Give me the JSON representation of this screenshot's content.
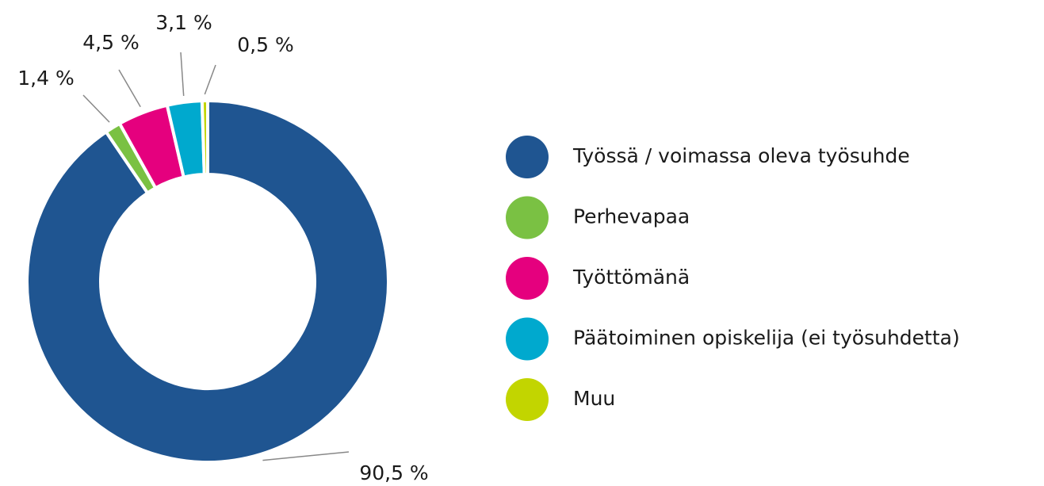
{
  "chart_data": {
    "type": "pie",
    "categories": [
      "Työssä / voimassa oleva työsuhde",
      "Perhevapaa",
      "Työttömänä",
      "Päätoiminen opiskelija (ei työsuhdetta)",
      "Muu"
    ],
    "values": [
      90.5,
      1.4,
      4.5,
      3.1,
      0.5
    ],
    "value_labels": [
      "90,5 %",
      "1,4 %",
      "4,5 %",
      "3,1 %",
      "0,5 %"
    ],
    "colors": [
      "#1f5591",
      "#7ac143",
      "#e5007e",
      "#00a9ce",
      "#c2d500"
    ],
    "donut": true,
    "legend": "right"
  }
}
